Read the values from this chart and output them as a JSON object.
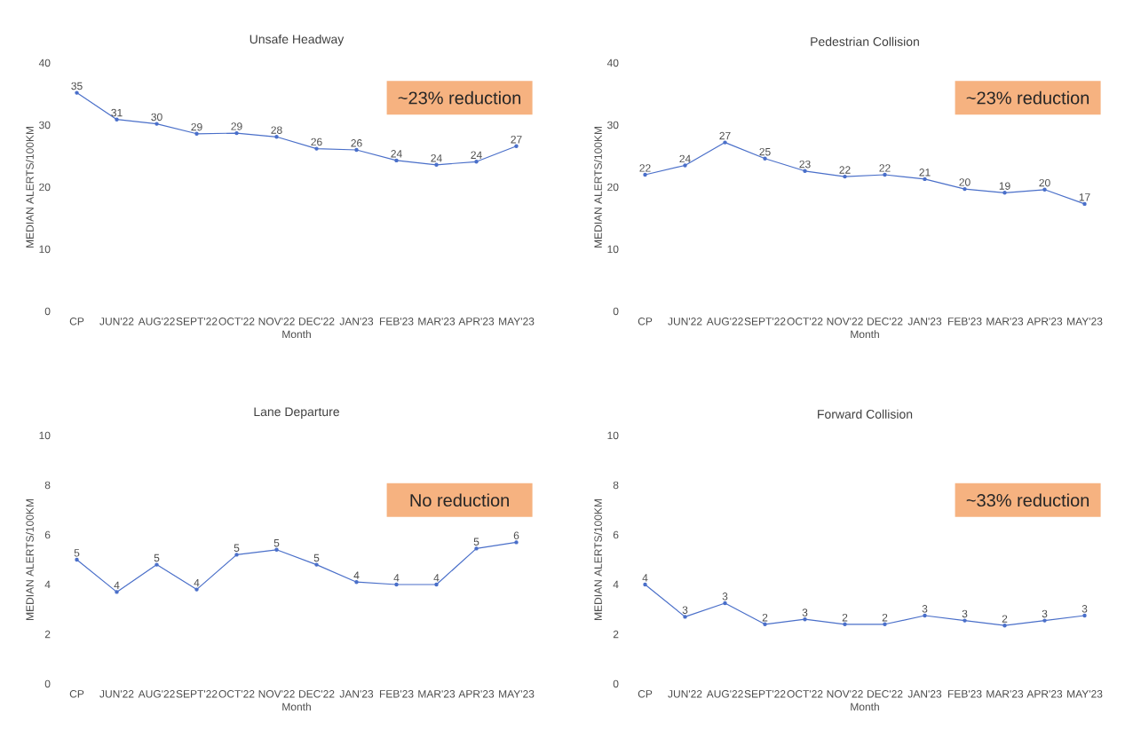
{
  "chart_data": [
    {
      "type": "line",
      "title": "Unsafe Headway",
      "xlabel": "Month",
      "ylabel": "MEDIAN ALERTS/100KM",
      "categories": [
        "CP",
        "JUN'22",
        "AUG'22",
        "SEPT'22",
        "OCT'22",
        "NOV'22",
        "DEC'22",
        "JAN'23",
        "FEB'23",
        "MAR'23",
        "APR'23",
        "MAY'23"
      ],
      "ylim": [
        0,
        40
      ],
      "yticks": [
        0,
        10,
        20,
        30,
        40
      ],
      "marker": "circle",
      "annotations": [
        "~23% reduction"
      ],
      "series": [
        {
          "color": "#4a6fc9",
          "values": [
            35.2,
            30.9,
            30.2,
            28.6,
            28.7,
            28.1,
            26.2,
            26.0,
            24.3,
            23.6,
            24.1,
            26.6
          ],
          "value_labels": [
            "35",
            "31",
            "30",
            "29",
            "29",
            "28",
            "26",
            "26",
            "24",
            "24",
            "24",
            "27"
          ]
        }
      ]
    },
    {
      "type": "line",
      "title": "Pedestrian Collision",
      "xlabel": "Month",
      "ylabel": "MEDIAN ALERTS/100KM",
      "categories": [
        "CP",
        "JUN'22",
        "AUG'22",
        "SEPT'22",
        "OCT'22",
        "NOV'22",
        "DEC'22",
        "JAN'23",
        "FEB'23",
        "MAR'23",
        "APR'23",
        "MAY'23"
      ],
      "ylim": [
        0,
        40
      ],
      "yticks": [
        0,
        10,
        20,
        30,
        40
      ],
      "marker": "circle",
      "annotations": [
        "~23% reduction"
      ],
      "series": [
        {
          "color": "#4a6fc9",
          "values": [
            22.0,
            23.5,
            27.2,
            24.6,
            22.6,
            21.7,
            22.0,
            21.3,
            19.7,
            19.1,
            19.6,
            17.3
          ],
          "value_labels": [
            "22",
            "24",
            "27",
            "25",
            "23",
            "22",
            "22",
            "21",
            "20",
            "19",
            "20",
            "17"
          ]
        }
      ]
    },
    {
      "type": "line",
      "title": "Lane Departure",
      "xlabel": "Month",
      "ylabel": "MEDIAN ALERTS/100KM",
      "categories": [
        "CP",
        "JUN'22",
        "AUG'22",
        "SEPT'22",
        "OCT'22",
        "NOV'22",
        "DEC'22",
        "JAN'23",
        "FEB'23",
        "MAR'23",
        "APR'23",
        "MAY'23"
      ],
      "ylim": [
        0,
        10
      ],
      "yticks": [
        0,
        2,
        4,
        6,
        8,
        10
      ],
      "marker": "circle",
      "annotations": [
        "No reduction"
      ],
      "series": [
        {
          "color": "#4a6fc9",
          "values": [
            5.0,
            3.7,
            4.8,
            3.8,
            5.2,
            5.4,
            4.8,
            4.1,
            4.0,
            4.0,
            5.45,
            5.7
          ],
          "value_labels": [
            "5",
            "4",
            "5",
            "4",
            "5",
            "5",
            "5",
            "4",
            "4",
            "4",
            "5",
            "6"
          ]
        }
      ]
    },
    {
      "type": "line",
      "title": "Forward Collision",
      "xlabel": "Month",
      "ylabel": "MEDIAN ALERTS/100KM",
      "categories": [
        "CP",
        "JUN'22",
        "AUG'22",
        "SEPT'22",
        "OCT'22",
        "NOV'22",
        "DEC'22",
        "JAN'23",
        "FEB'23",
        "MAR'23",
        "APR'23",
        "MAY'23"
      ],
      "ylim": [
        0,
        10
      ],
      "yticks": [
        0,
        2,
        4,
        6,
        8,
        10
      ],
      "marker": "circle",
      "annotations": [
        "~33% reduction"
      ],
      "series": [
        {
          "color": "#4a6fc9",
          "values": [
            4.0,
            2.7,
            3.25,
            2.4,
            2.6,
            2.4,
            2.4,
            2.75,
            2.55,
            2.35,
            2.55,
            2.75
          ],
          "value_labels": [
            "4",
            "3",
            "3",
            "2",
            "3",
            "2",
            "2",
            "3",
            "3",
            "2",
            "3",
            "3"
          ]
        }
      ]
    }
  ]
}
